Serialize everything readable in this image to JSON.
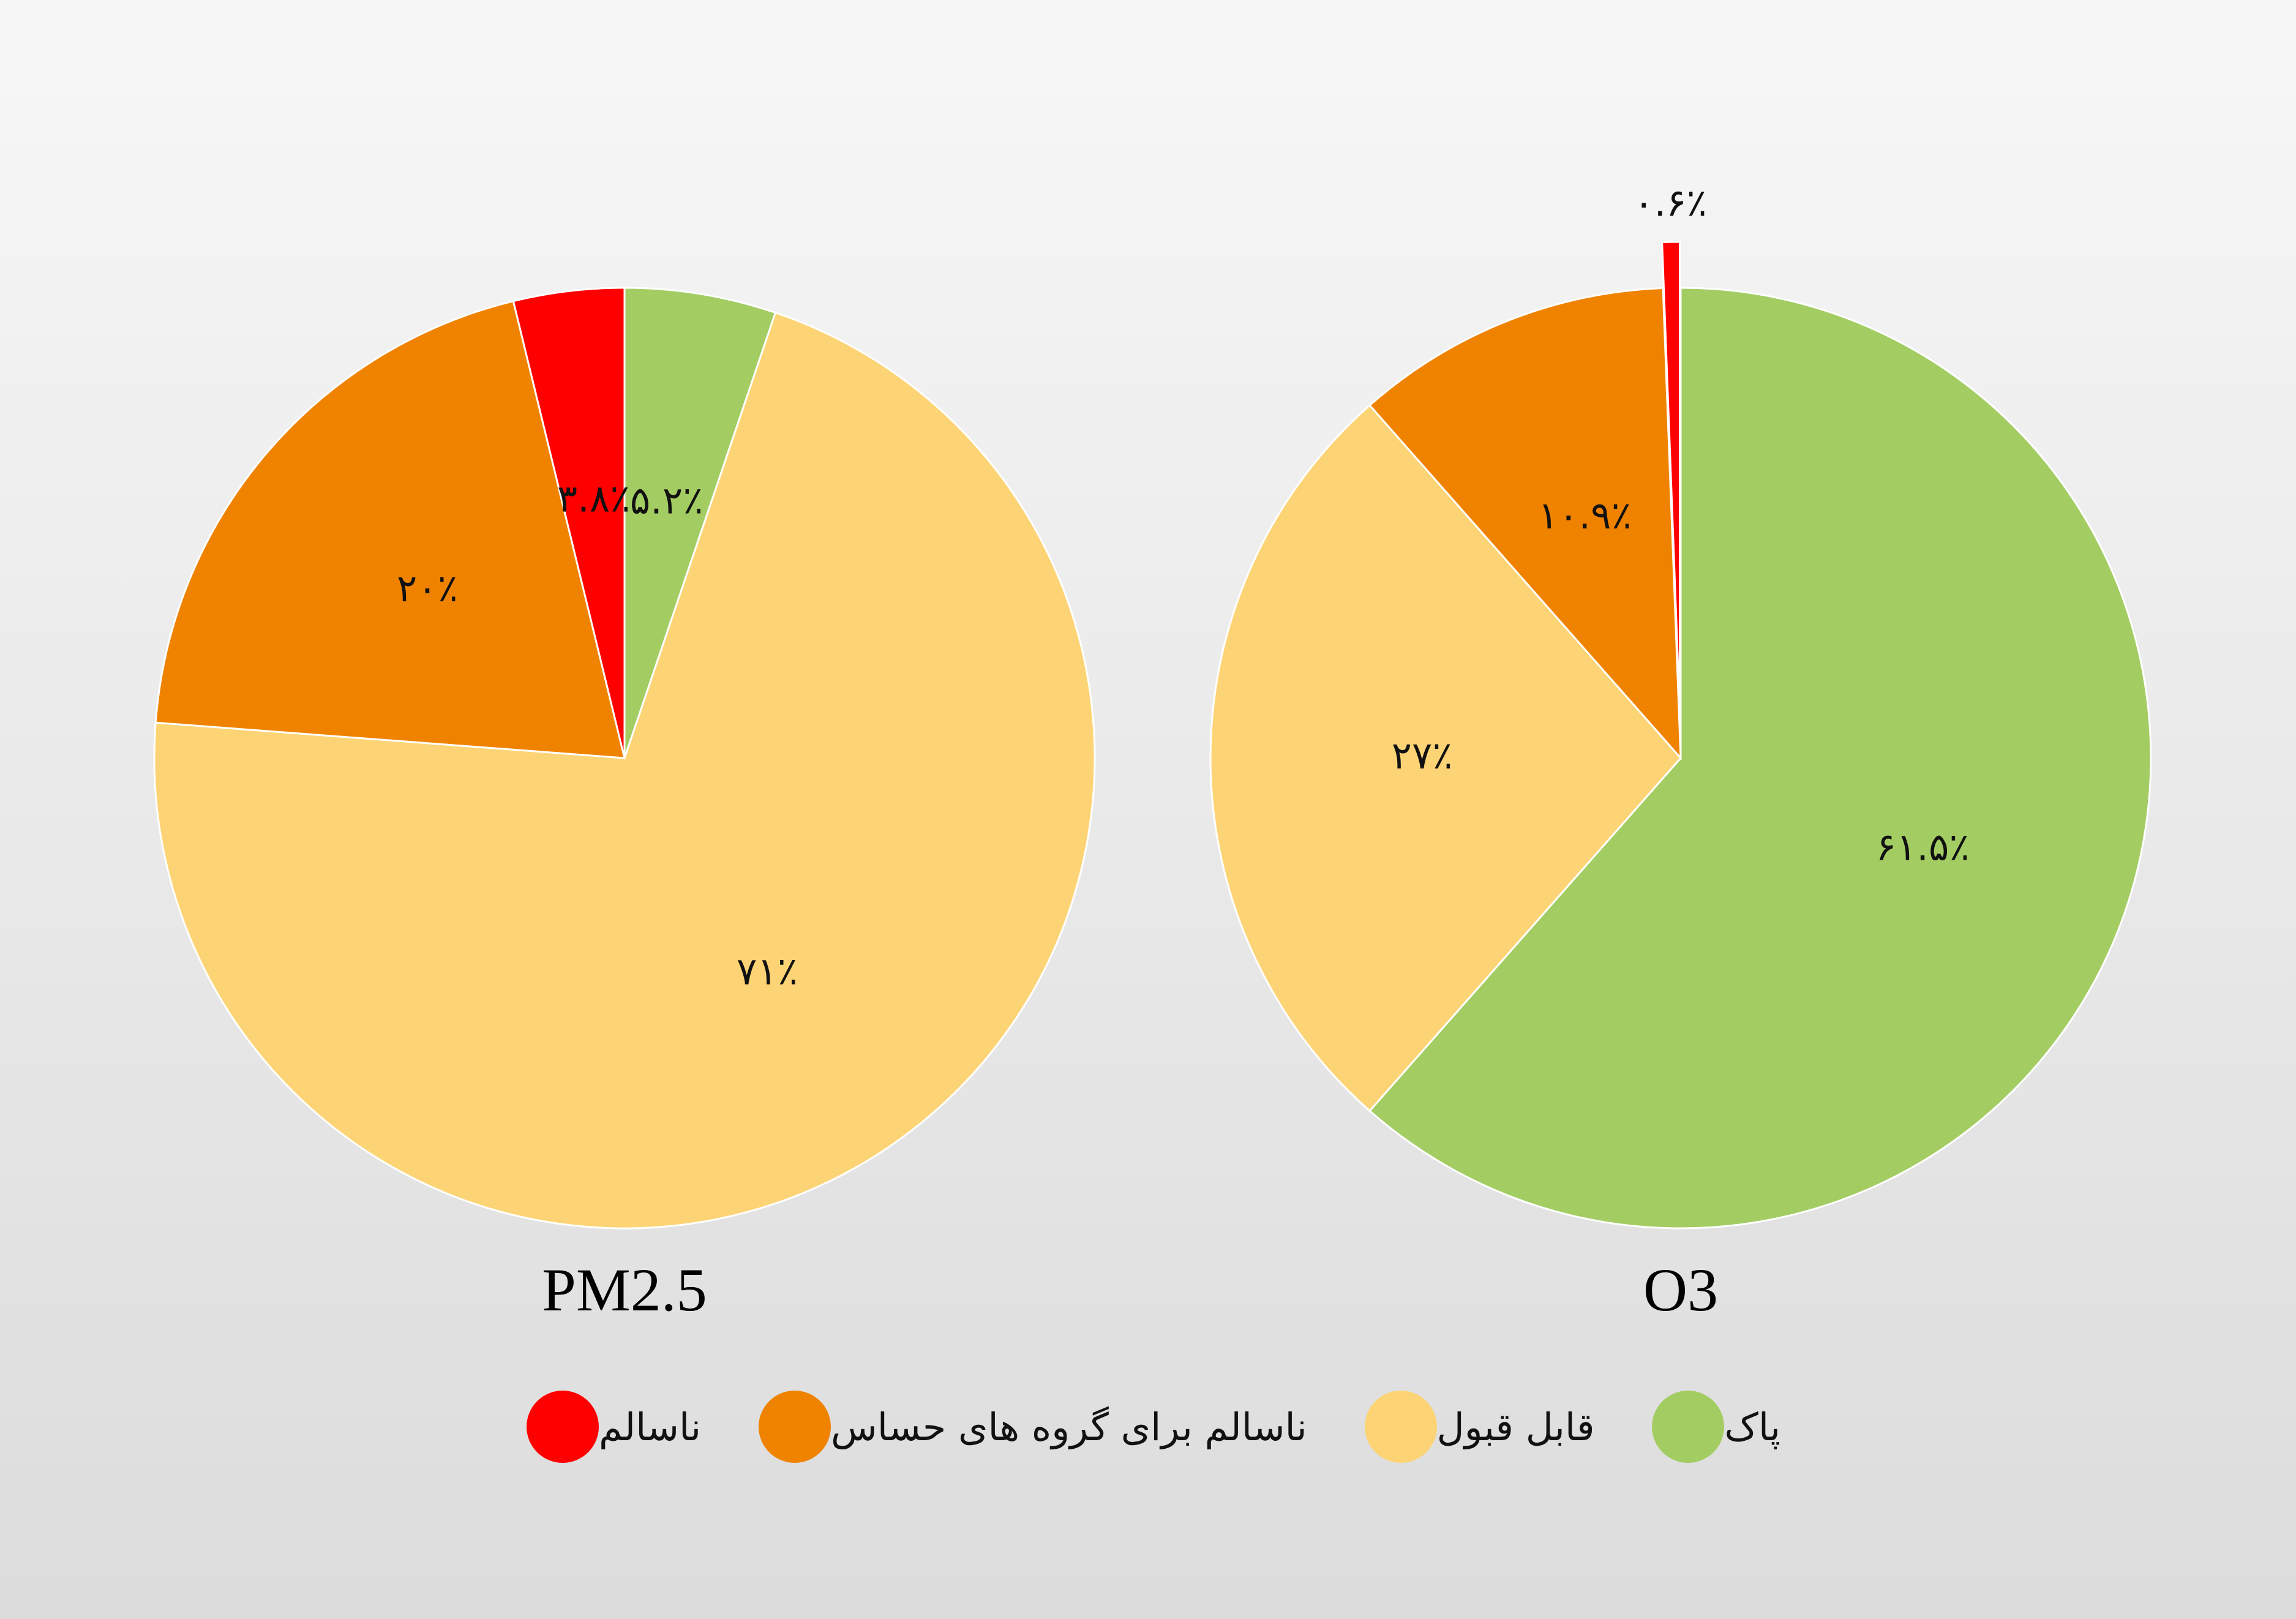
{
  "chart_data": [
    {
      "type": "pie",
      "title": "PM2.5",
      "slices": [
        {
          "category_key": "clean",
          "value": 5.2,
          "label": "۵.۲٪"
        },
        {
          "category_key": "acceptable",
          "value": 71,
          "label": "۷۱٪"
        },
        {
          "category_key": "sensitive",
          "value": 20,
          "label": "۲۰٪"
        },
        {
          "category_key": "unhealthy",
          "value": 3.8,
          "label": "۳.۸٪"
        }
      ]
    },
    {
      "type": "pie",
      "title": "O3",
      "slices": [
        {
          "category_key": "clean",
          "value": 61.5,
          "label": "۶۱.۵٪"
        },
        {
          "category_key": "acceptable",
          "value": 27,
          "label": "۲۷٪"
        },
        {
          "category_key": "sensitive",
          "value": 10.9,
          "label": "۱۰.۹٪"
        },
        {
          "category_key": "unhealthy",
          "value": 0.6,
          "label": "۰.۶٪",
          "exploded": true
        }
      ]
    }
  ],
  "legend": {
    "placement": "bottom",
    "items": [
      {
        "key": "clean",
        "label": "پاک",
        "color": "#a3cd63"
      },
      {
        "key": "acceptable",
        "label": "قابل قبول",
        "color": "#fdd475"
      },
      {
        "key": "sensitive",
        "label": "ناسالم برای گروه های حساس",
        "color": "#ef8300"
      },
      {
        "key": "unhealthy",
        "label": "ناسالم",
        "color": "#ff0000"
      }
    ]
  }
}
